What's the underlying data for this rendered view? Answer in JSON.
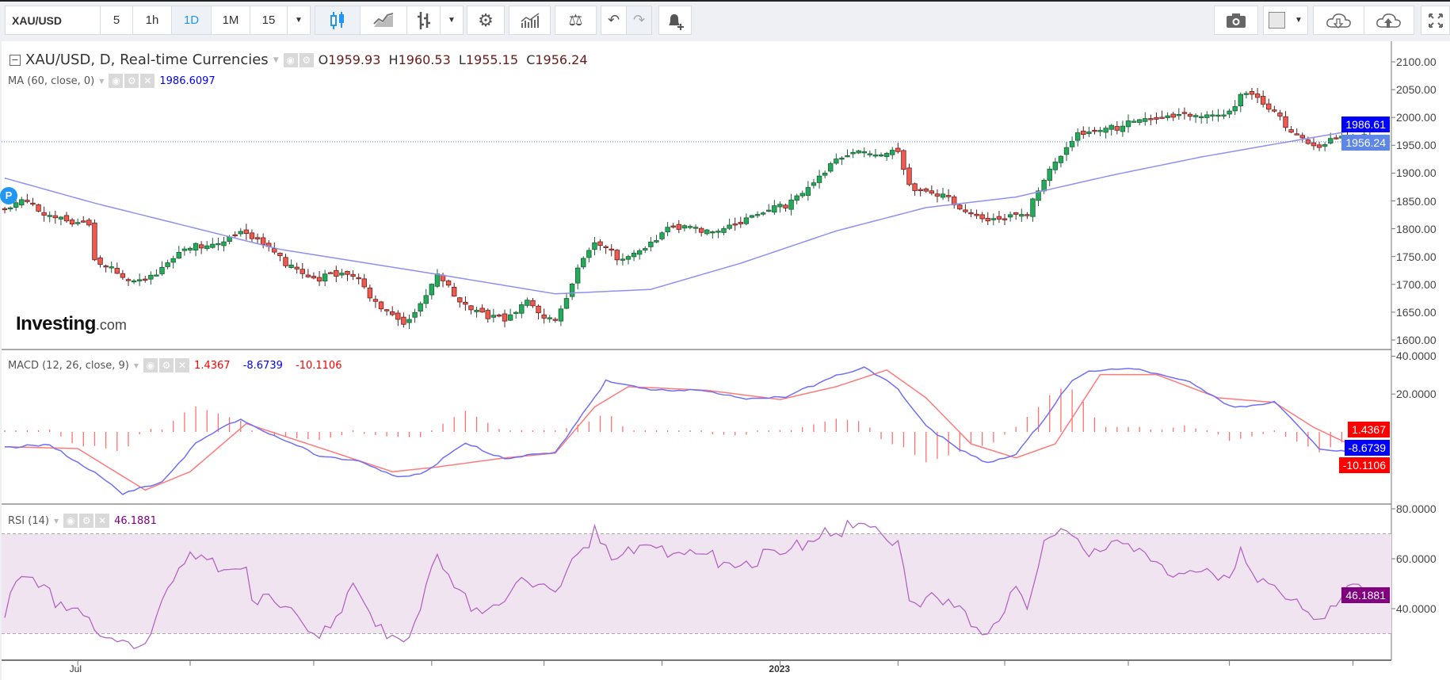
{
  "toolbar": {
    "symbol": "XAU/USD",
    "intervals": [
      "5",
      "1h",
      "1D",
      "1M",
      "15"
    ],
    "active_interval": "1D"
  },
  "legend": {
    "title": "XAU/USD, D, Real-time Currencies",
    "o_label": "O",
    "o": "1959.93",
    "h_label": "H",
    "h": "1960.53",
    "l_label": "L",
    "l": "1955.15",
    "c_label": "C",
    "c": "1956.24",
    "ma_title": "MA (60, close, 0)",
    "ma_value": "1986.6097",
    "macd_title": "MACD (12, 26, close, 9)",
    "macd_hist": "1.4367",
    "macd_line": "-8.6739",
    "macd_signal": "-10.1106",
    "rsi_title": "RSI (14)",
    "rsi_value": "46.1881"
  },
  "logo": {
    "text": "Investing",
    "suffix": ".com"
  },
  "marker": "P",
  "tags": {
    "ma": "1986.61",
    "price": "1956.24",
    "hist": "1.4367",
    "macd": "-8.6739",
    "signal": "-10.1106",
    "rsi": "46.1881"
  },
  "colors": {
    "up": "#22ab5a",
    "down": "#f05a4f",
    "ma": "#8f8ff5",
    "macd": "#6f6ff7",
    "signal": "#ff7a7a",
    "rsi": "#b366c2",
    "rsi_band": "#f1e4f1",
    "tag_blue": "#0000ff",
    "tag_red": "#ff0000",
    "tag_purple": "#800080",
    "price_tag": "#5d86e6"
  },
  "chart_data": [
    {
      "type": "candlestick",
      "title": "XAU/USD, D",
      "bars": 247,
      "y_ticks": [
        "2100.00",
        "2050.00",
        "2000.00",
        "1950.00",
        "1900.00",
        "1850.00",
        "1800.00",
        "1750.00",
        "1700.00",
        "1650.00",
        "1600.00"
      ],
      "ylim": [
        1600,
        2100
      ],
      "close_waypoints": [
        [
          0,
          1830
        ],
        [
          3,
          1846
        ],
        [
          10,
          1821
        ],
        [
          15,
          1804
        ],
        [
          16,
          1738
        ],
        [
          23,
          1713
        ],
        [
          27,
          1721
        ],
        [
          33,
          1763
        ],
        [
          42,
          1796
        ],
        [
          49,
          1746
        ],
        [
          56,
          1713
        ],
        [
          62,
          1713
        ],
        [
          66,
          1671
        ],
        [
          72,
          1630
        ],
        [
          77,
          1713
        ],
        [
          81,
          1671
        ],
        [
          89,
          1630
        ],
        [
          93,
          1663
        ],
        [
          98,
          1638
        ],
        [
          101,
          1705
        ],
        [
          105,
          1771
        ],
        [
          110,
          1746
        ],
        [
          118,
          1796
        ],
        [
          128,
          1804
        ],
        [
          138,
          1837
        ],
        [
          148,
          1921
        ],
        [
          154,
          1937
        ],
        [
          159,
          1946
        ],
        [
          161,
          1871
        ],
        [
          167,
          1854
        ],
        [
          176,
          1812
        ],
        [
          182,
          1821
        ],
        [
          185,
          1896
        ],
        [
          190,
          1962
        ],
        [
          195,
          1970
        ],
        [
          202,
          2004
        ],
        [
          208,
          1996
        ],
        [
          218,
          2012
        ],
        [
          220,
          2045
        ],
        [
          223,
          2029
        ],
        [
          230,
          1970
        ],
        [
          234,
          1954
        ],
        [
          241,
          1962
        ],
        [
          246,
          1956.24
        ]
      ],
      "ma60_waypoints": [
        [
          0,
          1891
        ],
        [
          16,
          1846
        ],
        [
          49,
          1763
        ],
        [
          77,
          1718
        ],
        [
          98,
          1683
        ],
        [
          115,
          1691
        ],
        [
          131,
          1738
        ],
        [
          148,
          1796
        ],
        [
          164,
          1838
        ],
        [
          180,
          1857
        ],
        [
          197,
          1896
        ],
        [
          213,
          1929
        ],
        [
          230,
          1959
        ],
        [
          246,
          1986.61
        ]
      ]
    },
    {
      "type": "line",
      "title": "MACD (12, 26, close, 9)",
      "ylim": [
        -40,
        45
      ],
      "y_ticks": [
        "40.0000",
        "20.0000"
      ],
      "macd_waypoints": [
        [
          0,
          -7.8
        ],
        [
          8,
          -7.3
        ],
        [
          16,
          -21
        ],
        [
          21,
          -33.2
        ],
        [
          28,
          -25.9
        ],
        [
          34,
          -6.3
        ],
        [
          42,
          7.3
        ],
        [
          49,
          -3.9
        ],
        [
          56,
          -12.2
        ],
        [
          62,
          -14.6
        ],
        [
          69,
          -23.4
        ],
        [
          74,
          -22
        ],
        [
          82,
          -6.3
        ],
        [
          89,
          -13.7
        ],
        [
          98,
          -11.2
        ],
        [
          103,
          10.7
        ],
        [
          107,
          26.8
        ],
        [
          113,
          22.9
        ],
        [
          123,
          22
        ],
        [
          131,
          18
        ],
        [
          139,
          18
        ],
        [
          148,
          30.3
        ],
        [
          153,
          33.7
        ],
        [
          159,
          22.9
        ],
        [
          164,
          3.4
        ],
        [
          170,
          -9.8
        ],
        [
          175,
          -16.1
        ],
        [
          180,
          -11.2
        ],
        [
          185,
          5.9
        ],
        [
          190,
          27.8
        ],
        [
          193,
          32.7
        ],
        [
          202,
          32.7
        ],
        [
          210,
          27.8
        ],
        [
          218,
          13.2
        ],
        [
          226,
          15.6
        ],
        [
          234,
          -8.8
        ],
        [
          241,
          -10.2
        ],
        [
          246,
          -8.6739
        ]
      ],
      "signal_waypoints": [
        [
          0,
          -7.8
        ],
        [
          13,
          -8.8
        ],
        [
          25,
          -30.7
        ],
        [
          33,
          -21
        ],
        [
          43,
          4.4
        ],
        [
          49,
          -1.5
        ],
        [
          59,
          -11.2
        ],
        [
          69,
          -21
        ],
        [
          77,
          -18.5
        ],
        [
          89,
          -13.7
        ],
        [
          98,
          -11.2
        ],
        [
          105,
          13.2
        ],
        [
          111,
          23.9
        ],
        [
          125,
          22
        ],
        [
          138,
          17.1
        ],
        [
          148,
          23.9
        ],
        [
          157,
          32.7
        ],
        [
          164,
          18
        ],
        [
          172,
          -6.3
        ],
        [
          180,
          -13.7
        ],
        [
          187,
          -6.3
        ],
        [
          195,
          30.3
        ],
        [
          205,
          30.3
        ],
        [
          216,
          18
        ],
        [
          226,
          15.6
        ],
        [
          233,
          2.4
        ],
        [
          241,
          -8.8
        ],
        [
          246,
          -10.1106
        ]
      ]
    },
    {
      "type": "line",
      "title": "RSI (14)",
      "ylim": [
        20,
        80
      ],
      "bands": [
        30,
        70
      ],
      "y_ticks": [
        "80.0000",
        "60.0000",
        "40.0000"
      ],
      "rsi_waypoints": [
        [
          0,
          39.6
        ],
        [
          3,
          50.6
        ],
        [
          10,
          43.3
        ],
        [
          15,
          39.6
        ],
        [
          16,
          28.6
        ],
        [
          21,
          25
        ],
        [
          25,
          26.8
        ],
        [
          28,
          47
        ],
        [
          33,
          59.8
        ],
        [
          38,
          56.1
        ],
        [
          43,
          59.8
        ],
        [
          44,
          47
        ],
        [
          49,
          39.6
        ],
        [
          56,
          30.5
        ],
        [
          62,
          47
        ],
        [
          66,
          32.3
        ],
        [
          72,
          28.6
        ],
        [
          77,
          59.8
        ],
        [
          80,
          47
        ],
        [
          85,
          39.6
        ],
        [
          92,
          48.8
        ],
        [
          98,
          47
        ],
        [
          102,
          65.3
        ],
        [
          105,
          69.7
        ],
        [
          108,
          58
        ],
        [
          115,
          69
        ],
        [
          121,
          59.8
        ],
        [
          131,
          59.8
        ],
        [
          139,
          61.7
        ],
        [
          146,
          72.7
        ],
        [
          152,
          70.8
        ],
        [
          159,
          69
        ],
        [
          161,
          45.1
        ],
        [
          167,
          41.5
        ],
        [
          175,
          30.5
        ],
        [
          180,
          48.8
        ],
        [
          182,
          39.6
        ],
        [
          185,
          65.3
        ],
        [
          189,
          74.5
        ],
        [
          193,
          61.7
        ],
        [
          202,
          65.3
        ],
        [
          210,
          52.5
        ],
        [
          218,
          54.3
        ],
        [
          220,
          65.3
        ],
        [
          225,
          47
        ],
        [
          230,
          41.5
        ],
        [
          234,
          37.8
        ],
        [
          239,
          48.8
        ],
        [
          243,
          43.3
        ],
        [
          246,
          46.1881
        ]
      ]
    }
  ],
  "x_axis": {
    "labels": [
      {
        "text": "Jul",
        "tick": 13
      },
      {
        "text": "2023",
        "tick": 138
      }
    ],
    "tick_bars": [
      13,
      33,
      55,
      76,
      96,
      117,
      138,
      159,
      178,
      200,
      218,
      240
    ]
  }
}
